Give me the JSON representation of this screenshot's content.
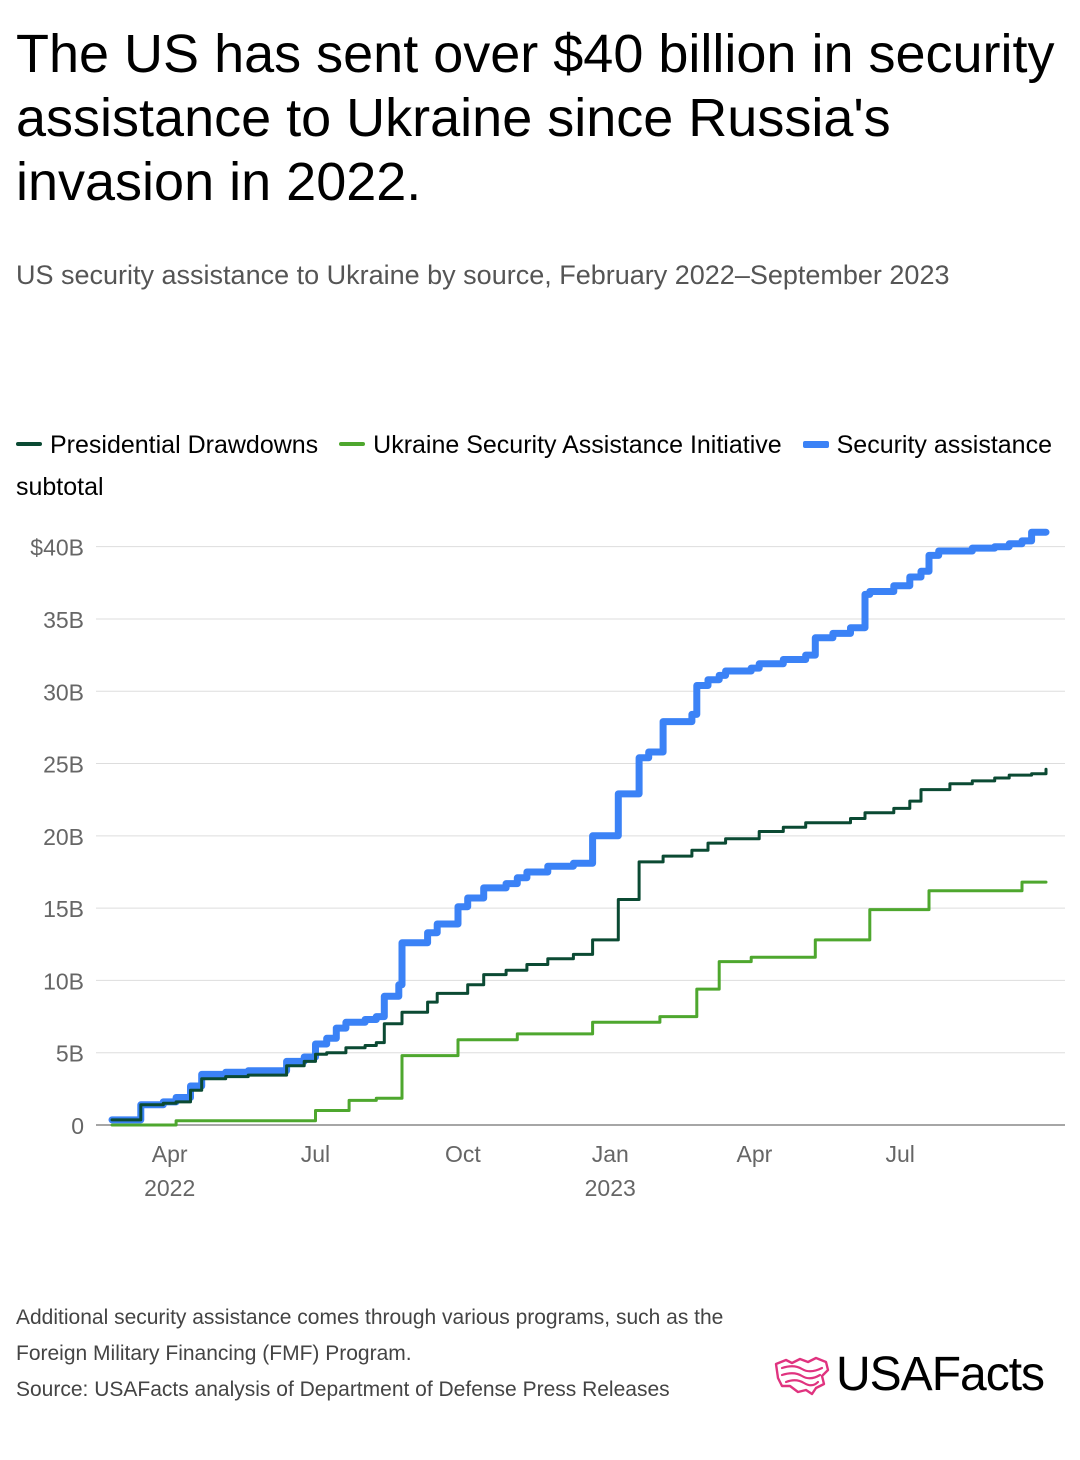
{
  "title": "The US has sent over $40 billion in security assistance to Ukraine since Russia's invasion in 2022.",
  "subtitle": "US security assistance to Ukraine by source, February 2022–September 2023",
  "colors": {
    "presidential": "#0b4a33",
    "usai": "#4ea72e",
    "subtotal": "#3b82f6",
    "grid": "#dddddd",
    "axis_text": "#666666",
    "brand_accent": "#e0337f"
  },
  "chart_data": {
    "type": "line",
    "line_shape": "step",
    "x_axis": {
      "ticks": [
        {
          "date": "2022-04-01",
          "label": "Apr",
          "year": "2022"
        },
        {
          "date": "2022-07-01",
          "label": "Jul",
          "year": ""
        },
        {
          "date": "2022-10-01",
          "label": "Oct",
          "year": ""
        },
        {
          "date": "2023-01-01",
          "label": "Jan",
          "year": "2023"
        },
        {
          "date": "2023-04-01",
          "label": "Apr",
          "year": ""
        },
        {
          "date": "2023-07-01",
          "label": "Jul",
          "year": ""
        }
      ],
      "range": [
        "2022-02-24",
        "2023-09-30"
      ]
    },
    "y_axis": {
      "ticks": [
        "0",
        "5B",
        "10B",
        "15B",
        "20B",
        "25B",
        "30B",
        "35B",
        "$40B"
      ],
      "values": [
        0,
        5,
        10,
        15,
        20,
        25,
        30,
        35,
        40
      ],
      "range": [
        0,
        41.5
      ],
      "unit": "billions USD"
    },
    "legend_position": "top",
    "grid": true,
    "series": [
      {
        "name": "Presidential Drawdowns",
        "color": "#0b4a33",
        "points": [
          [
            "2022-02-24",
            0.35
          ],
          [
            "2022-03-12",
            0.35
          ],
          [
            "2022-03-14",
            1.4
          ],
          [
            "2022-03-28",
            1.5
          ],
          [
            "2022-04-05",
            1.6
          ],
          [
            "2022-04-14",
            2.4
          ],
          [
            "2022-04-21",
            3.2
          ],
          [
            "2022-05-06",
            3.35
          ],
          [
            "2022-05-20",
            3.45
          ],
          [
            "2022-06-13",
            4.1
          ],
          [
            "2022-06-24",
            4.4
          ],
          [
            "2022-07-01",
            4.9
          ],
          [
            "2022-07-08",
            5.0
          ],
          [
            "2022-07-20",
            5.35
          ],
          [
            "2022-08-01",
            5.5
          ],
          [
            "2022-08-08",
            5.7
          ],
          [
            "2022-08-13",
            7.0
          ],
          [
            "2022-08-24",
            7.8
          ],
          [
            "2022-09-09",
            8.5
          ],
          [
            "2022-09-15",
            9.1
          ],
          [
            "2022-10-04",
            9.7
          ],
          [
            "2022-10-14",
            10.4
          ],
          [
            "2022-10-28",
            10.7
          ],
          [
            "2022-11-10",
            11.1
          ],
          [
            "2022-11-23",
            11.5
          ],
          [
            "2022-12-09",
            11.8
          ],
          [
            "2022-12-21",
            12.8
          ],
          [
            "2023-01-06",
            15.6
          ],
          [
            "2023-01-19",
            18.2
          ],
          [
            "2023-02-03",
            18.6
          ],
          [
            "2023-02-21",
            19.0
          ],
          [
            "2023-03-03",
            19.5
          ],
          [
            "2023-03-14",
            19.8
          ],
          [
            "2023-04-04",
            20.3
          ],
          [
            "2023-04-19",
            20.6
          ],
          [
            "2023-05-03",
            20.9
          ],
          [
            "2023-05-31",
            21.2
          ],
          [
            "2023-06-09",
            21.6
          ],
          [
            "2023-06-27",
            21.9
          ],
          [
            "2023-07-07",
            22.4
          ],
          [
            "2023-07-14",
            23.2
          ],
          [
            "2023-08-01",
            23.6
          ],
          [
            "2023-08-15",
            23.8
          ],
          [
            "2023-08-29",
            24.0
          ],
          [
            "2023-09-07",
            24.2
          ],
          [
            "2023-09-21",
            24.3
          ],
          [
            "2023-09-30",
            24.6
          ]
        ]
      },
      {
        "name": "Ukraine Security Assistance Initiative",
        "color": "#4ea72e",
        "points": [
          [
            "2022-02-24",
            0.0
          ],
          [
            "2022-04-01",
            0.0
          ],
          [
            "2022-04-05",
            0.3
          ],
          [
            "2022-06-24",
            0.3
          ],
          [
            "2022-07-01",
            1.0
          ],
          [
            "2022-07-22",
            1.7
          ],
          [
            "2022-08-08",
            1.85
          ],
          [
            "2022-08-24",
            4.8
          ],
          [
            "2022-09-28",
            5.9
          ],
          [
            "2022-11-04",
            6.3
          ],
          [
            "2022-12-21",
            7.1
          ],
          [
            "2023-02-01",
            7.5
          ],
          [
            "2023-02-24",
            9.4
          ],
          [
            "2023-03-10",
            11.3
          ],
          [
            "2023-03-30",
            11.6
          ],
          [
            "2023-05-09",
            12.8
          ],
          [
            "2023-06-12",
            14.9
          ],
          [
            "2023-07-19",
            16.2
          ],
          [
            "2023-08-25",
            16.2
          ],
          [
            "2023-09-15",
            16.8
          ],
          [
            "2023-09-30",
            16.8
          ]
        ]
      },
      {
        "name": "Security assistance subtotal",
        "color": "#3b82f6",
        "points": [
          [
            "2022-02-24",
            0.35
          ],
          [
            "2022-03-12",
            0.35
          ],
          [
            "2022-03-14",
            1.4
          ],
          [
            "2022-03-28",
            1.6
          ],
          [
            "2022-04-05",
            1.9
          ],
          [
            "2022-04-14",
            2.7
          ],
          [
            "2022-04-21",
            3.5
          ],
          [
            "2022-05-06",
            3.65
          ],
          [
            "2022-05-20",
            3.75
          ],
          [
            "2022-06-13",
            4.4
          ],
          [
            "2022-06-24",
            4.7
          ],
          [
            "2022-07-01",
            5.6
          ],
          [
            "2022-07-08",
            6.0
          ],
          [
            "2022-07-14",
            6.7
          ],
          [
            "2022-07-20",
            7.1
          ],
          [
            "2022-08-01",
            7.3
          ],
          [
            "2022-08-08",
            7.5
          ],
          [
            "2022-08-13",
            8.9
          ],
          [
            "2022-08-22",
            9.7
          ],
          [
            "2022-08-24",
            12.6
          ],
          [
            "2022-09-09",
            13.3
          ],
          [
            "2022-09-15",
            13.9
          ],
          [
            "2022-09-28",
            15.1
          ],
          [
            "2022-10-04",
            15.7
          ],
          [
            "2022-10-14",
            16.4
          ],
          [
            "2022-10-28",
            16.7
          ],
          [
            "2022-11-04",
            17.1
          ],
          [
            "2022-11-10",
            17.5
          ],
          [
            "2022-11-23",
            17.9
          ],
          [
            "2022-12-09",
            18.1
          ],
          [
            "2022-12-21",
            20.0
          ],
          [
            "2023-01-06",
            22.9
          ],
          [
            "2023-01-19",
            25.4
          ],
          [
            "2023-01-25",
            25.8
          ],
          [
            "2023-02-03",
            27.9
          ],
          [
            "2023-02-21",
            28.4
          ],
          [
            "2023-02-24",
            30.4
          ],
          [
            "2023-03-03",
            30.8
          ],
          [
            "2023-03-10",
            31.1
          ],
          [
            "2023-03-14",
            31.4
          ],
          [
            "2023-03-30",
            31.6
          ],
          [
            "2023-04-04",
            31.9
          ],
          [
            "2023-04-19",
            32.2
          ],
          [
            "2023-05-03",
            32.5
          ],
          [
            "2023-05-09",
            33.7
          ],
          [
            "2023-05-20",
            34.0
          ],
          [
            "2023-05-31",
            34.4
          ],
          [
            "2023-06-09",
            36.7
          ],
          [
            "2023-06-12",
            36.9
          ],
          [
            "2023-06-27",
            37.3
          ],
          [
            "2023-07-07",
            37.9
          ],
          [
            "2023-07-14",
            38.3
          ],
          [
            "2023-07-19",
            39.4
          ],
          [
            "2023-07-25",
            39.7
          ],
          [
            "2023-08-15",
            39.9
          ],
          [
            "2023-08-29",
            40.0
          ],
          [
            "2023-09-07",
            40.2
          ],
          [
            "2023-09-15",
            40.4
          ],
          [
            "2023-09-21",
            41.0
          ],
          [
            "2023-09-30",
            41.0
          ]
        ]
      }
    ]
  },
  "footer": {
    "note": "Additional security assistance comes through various programs, such as the Foreign Military Financing (FMF) Program.",
    "source": "Source: USAFacts analysis of Department of Defense Press Releases"
  },
  "brand": {
    "name": "USAFacts",
    "icon": "usa-map-flag-icon"
  }
}
